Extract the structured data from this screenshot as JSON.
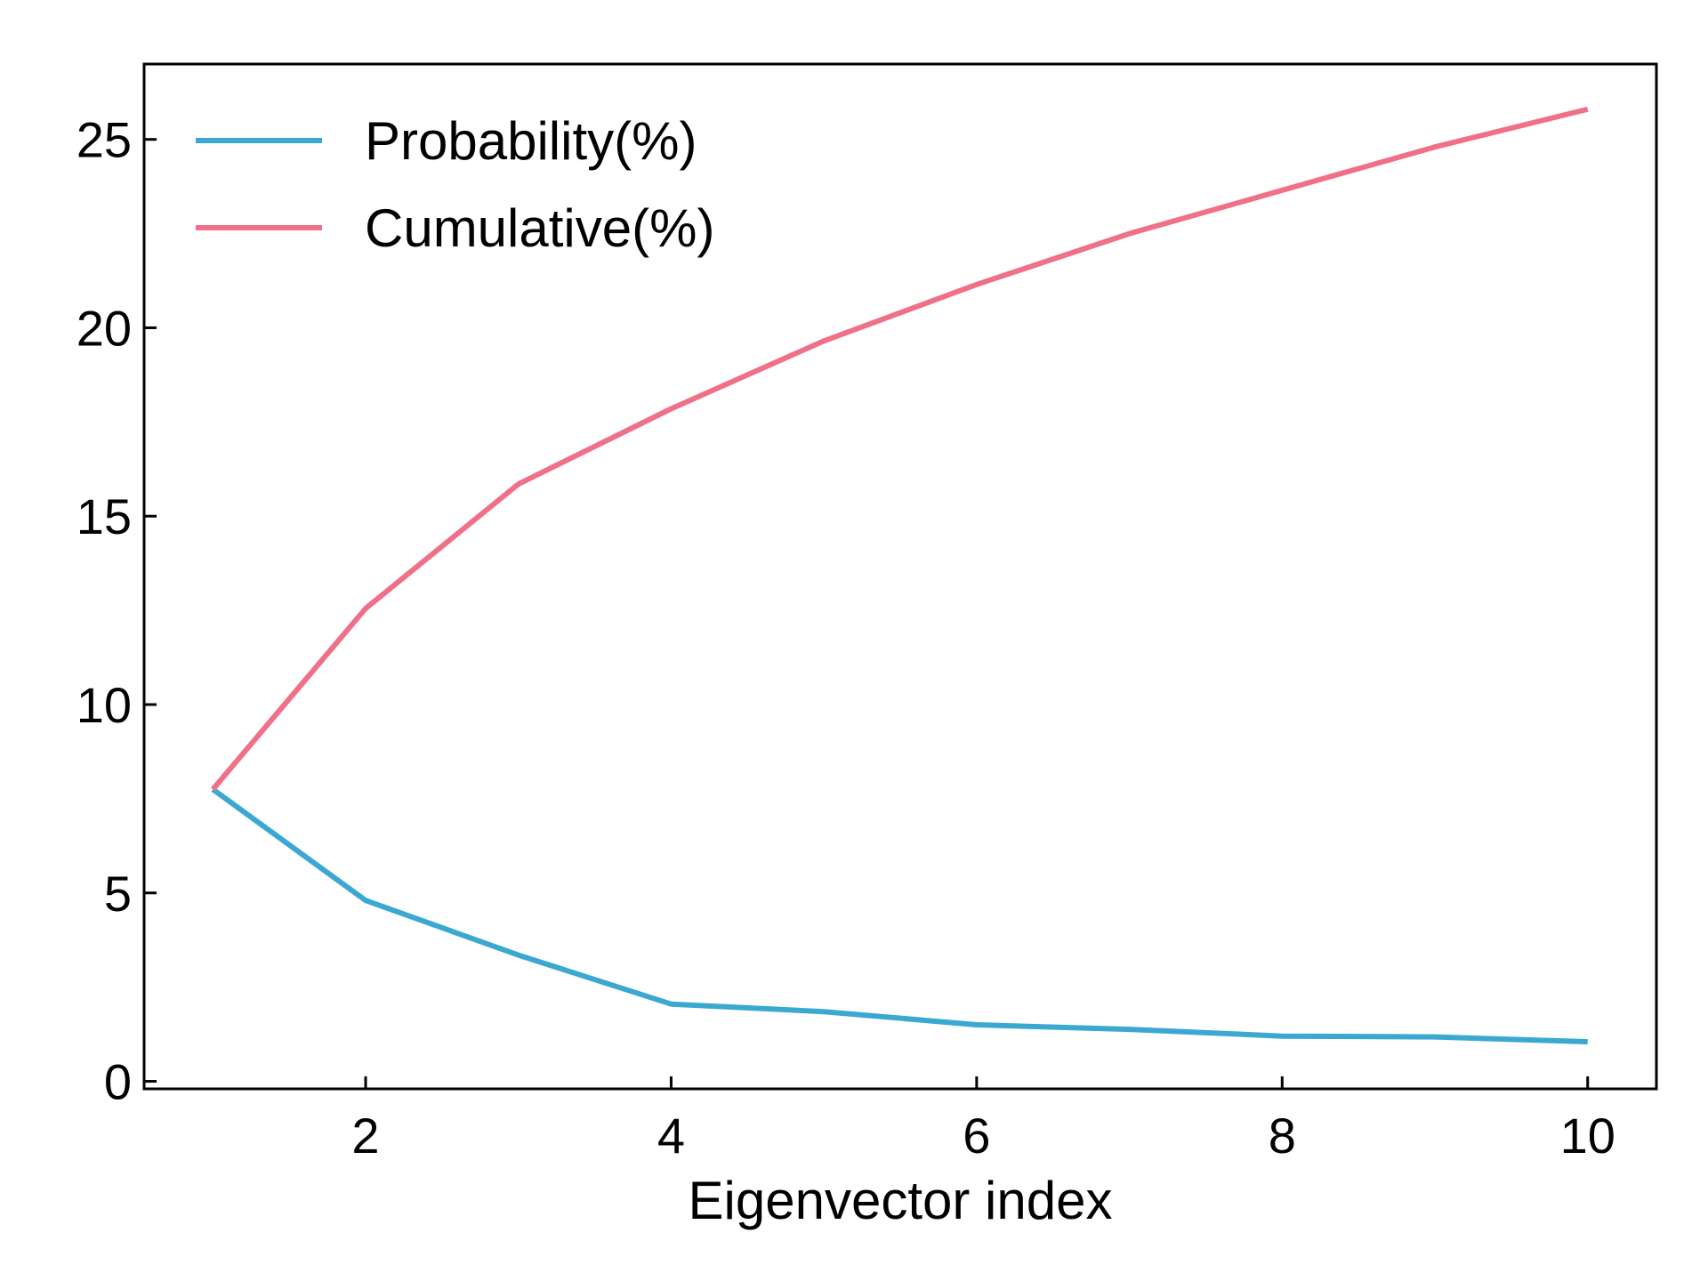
{
  "chart_data": {
    "type": "line",
    "title": "",
    "xlabel": "Eigenvector index",
    "ylabel": "",
    "xlim": [
      0.55,
      10.45
    ],
    "ylim": [
      -0.2,
      27.0
    ],
    "xticks": [
      2,
      4,
      6,
      8,
      10
    ],
    "yticks": [
      0,
      5,
      10,
      15,
      20,
      25
    ],
    "legend_position": "top-left",
    "series": [
      {
        "name": "Probability(%)",
        "color": "#3ba8d2",
        "x": [
          1,
          2,
          3,
          4,
          5,
          6,
          7,
          8,
          9,
          10
        ],
        "values": [
          7.75,
          4.8,
          3.35,
          2.05,
          1.85,
          1.5,
          1.38,
          1.2,
          1.18,
          1.05
        ]
      },
      {
        "name": "Cumulative(%)",
        "color": "#f07088",
        "x": [
          1,
          2,
          3,
          4,
          5,
          6,
          7,
          8,
          9,
          10
        ],
        "values": [
          7.75,
          12.55,
          15.85,
          17.85,
          19.65,
          21.15,
          22.5,
          23.65,
          24.8,
          25.8
        ]
      }
    ]
  }
}
